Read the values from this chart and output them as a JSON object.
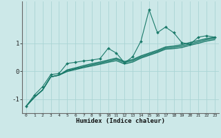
{
  "bg_color": "#cce8e8",
  "line_color": "#1a7a6a",
  "grid_color": "#aad4d4",
  "xlabel": "Humidex (Indice chaleur)",
  "xlim": [
    -0.5,
    23.5
  ],
  "ylim": [
    -1.5,
    2.5
  ],
  "yticks": [
    -1,
    0,
    1
  ],
  "xticks": [
    0,
    1,
    2,
    3,
    4,
    5,
    6,
    7,
    8,
    9,
    10,
    11,
    12,
    13,
    14,
    15,
    16,
    17,
    18,
    19,
    20,
    21,
    22,
    23
  ],
  "spiky_x": [
    0,
    1,
    2,
    3,
    4,
    5,
    6,
    7,
    8,
    9,
    10,
    11,
    12,
    13,
    14,
    15,
    16,
    17,
    18,
    19,
    20,
    21,
    22,
    23
  ],
  "spiky_y": [
    -1.25,
    -0.85,
    -0.55,
    -0.12,
    -0.08,
    0.28,
    0.32,
    0.37,
    0.4,
    0.45,
    0.82,
    0.65,
    0.3,
    0.52,
    1.08,
    2.2,
    1.38,
    1.58,
    1.38,
    1.02,
    0.97,
    1.22,
    1.27,
    1.22
  ],
  "line2_y": [
    -1.25,
    -0.93,
    -0.67,
    -0.2,
    -0.14,
    0.05,
    0.12,
    0.2,
    0.27,
    0.33,
    0.4,
    0.47,
    0.35,
    0.42,
    0.55,
    0.65,
    0.75,
    0.87,
    0.9,
    0.95,
    1.03,
    1.1,
    1.17,
    1.22
  ],
  "line3_y": [
    -1.25,
    -0.93,
    -0.67,
    -0.2,
    -0.14,
    0.02,
    0.09,
    0.16,
    0.23,
    0.29,
    0.36,
    0.43,
    0.31,
    0.38,
    0.51,
    0.61,
    0.71,
    0.83,
    0.86,
    0.9,
    0.98,
    1.05,
    1.13,
    1.18
  ],
  "line4_y": [
    -1.25,
    -0.93,
    -0.67,
    -0.2,
    -0.14,
    -0.01,
    0.06,
    0.13,
    0.19,
    0.25,
    0.32,
    0.38,
    0.26,
    0.33,
    0.47,
    0.57,
    0.67,
    0.79,
    0.81,
    0.85,
    0.93,
    1.0,
    1.08,
    1.13
  ]
}
